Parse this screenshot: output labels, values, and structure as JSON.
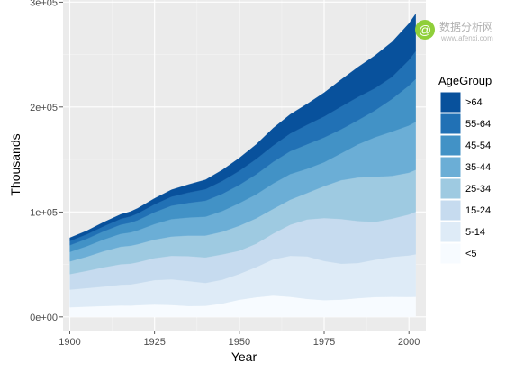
{
  "chart_data": {
    "type": "area",
    "stacked": true,
    "xlabel": "Year",
    "ylabel": "Thousands",
    "xlim": [
      1898,
      2005
    ],
    "ylim": [
      -13000,
      302000
    ],
    "x_ticks": [
      1900,
      1925,
      1950,
      1975,
      2000
    ],
    "y_ticks": [
      0,
      100000,
      200000,
      300000
    ],
    "y_tick_labels": [
      "0e+00",
      "1e+05",
      "2e+05",
      "3e+05"
    ],
    "legend_title": "AgeGroup",
    "legend_position": "right",
    "grid": true,
    "x": [
      1900,
      1905,
      1910,
      1915,
      1918,
      1920,
      1925,
      1930,
      1935,
      1940,
      1945,
      1950,
      1955,
      1960,
      1965,
      1970,
      1975,
      1980,
      1985,
      1990,
      1995,
      2000,
      2002
    ],
    "series": [
      {
        "name": "<5",
        "color": "#f7fbff",
        "values": [
          9200,
          9800,
          10400,
          10900,
          10800,
          11200,
          11800,
          11400,
          10400,
          10600,
          12800,
          16400,
          18800,
          20400,
          19200,
          17200,
          16000,
          16500,
          17900,
          19000,
          19200,
          19100,
          19200
        ]
      },
      {
        "name": "5-14",
        "color": "#deebf7",
        "values": [
          16800,
          17700,
          18500,
          19800,
          20200,
          20900,
          23300,
          24400,
          23800,
          21800,
          22700,
          24600,
          28700,
          34500,
          39000,
          40500,
          37300,
          34200,
          33500,
          35500,
          38000,
          39500,
          40500
        ]
      },
      {
        "name": "15-24",
        "color": "#c6dbef",
        "values": [
          14800,
          16400,
          18400,
          19500,
          19800,
          20000,
          21000,
          22400,
          23700,
          24300,
          24100,
          22100,
          22300,
          24600,
          29700,
          35200,
          40900,
          42600,
          40000,
          36000,
          36400,
          39000,
          40500
        ]
      },
      {
        "name": "25-34",
        "color": "#9ecae1",
        "values": [
          12100,
          13500,
          15300,
          16700,
          17100,
          17200,
          17600,
          18400,
          19600,
          20800,
          21600,
          23800,
          24200,
          23500,
          23800,
          25200,
          30400,
          37000,
          41500,
          43100,
          40800,
          39800,
          40000
        ]
      },
      {
        "name": "35-44",
        "color": "#6baed6",
        "values": [
          9000,
          10000,
          11200,
          12300,
          12700,
          13200,
          14800,
          16600,
          17200,
          18000,
          19700,
          21500,
          22800,
          24200,
          24400,
          23100,
          22800,
          25600,
          31600,
          37600,
          42200,
          45000,
          45700
        ]
      },
      {
        "name": "45-54",
        "color": "#4292c6",
        "values": [
          6400,
          7000,
          7800,
          8700,
          9300,
          9600,
          11300,
          12800,
          14000,
          15200,
          16400,
          17400,
          19100,
          20600,
          21800,
          23300,
          23600,
          22800,
          23000,
          25500,
          31000,
          38000,
          40800
        ]
      },
      {
        "name": "55-64",
        "color": "#2171b5",
        "values": [
          4000,
          4300,
          4800,
          5500,
          6000,
          6500,
          7500,
          8600,
          9800,
          11000,
          12300,
          13400,
          14600,
          15600,
          16900,
          18600,
          20000,
          21700,
          22100,
          21200,
          21000,
          24300,
          26500
        ]
      },
      {
        "name": ">64",
        "color": "#08519c",
        "values": [
          3100,
          3400,
          3900,
          4300,
          4600,
          4900,
          5700,
          6600,
          7700,
          9000,
          10500,
          12300,
          14000,
          16600,
          18200,
          19900,
          22700,
          25700,
          28500,
          31200,
          33400,
          34900,
          35600
        ]
      }
    ]
  },
  "watermark": {
    "logo_glyph": "@",
    "title": "数据分析网",
    "url": "www.afenxi.com"
  }
}
